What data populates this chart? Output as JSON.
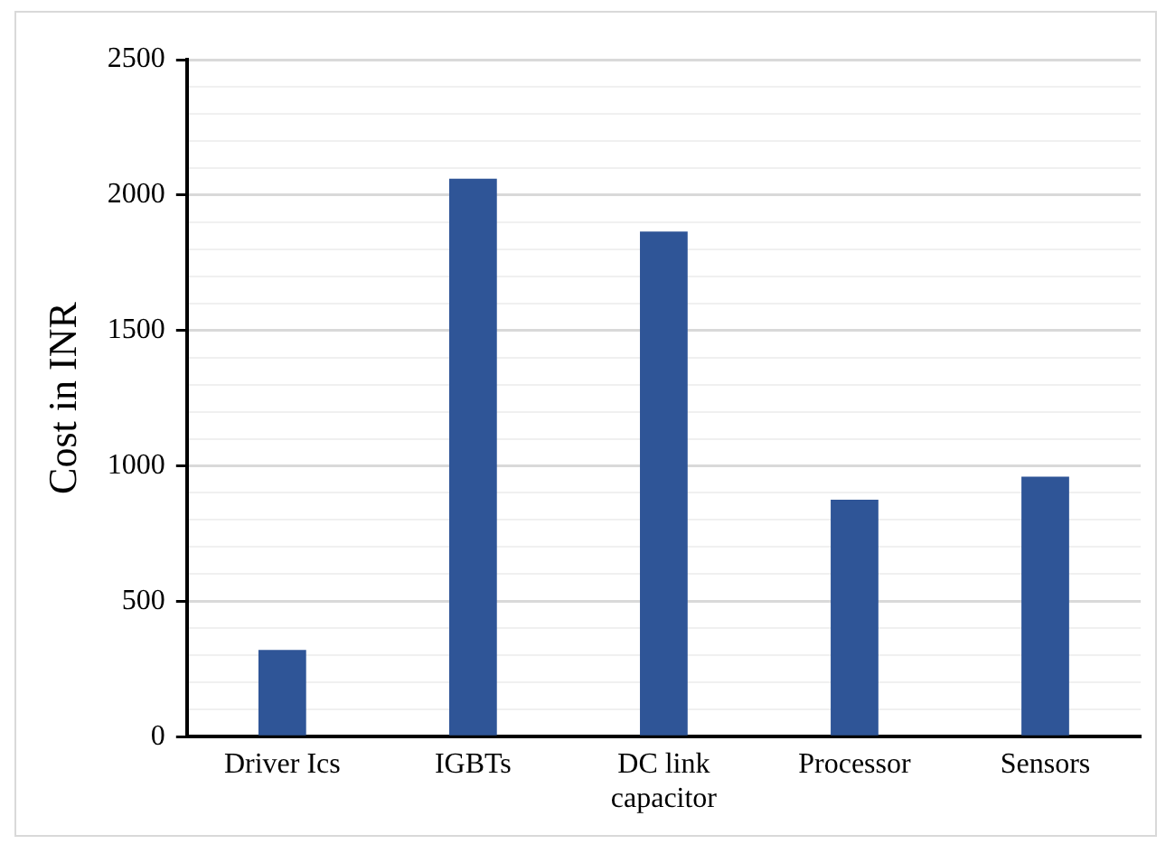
{
  "chart_data": {
    "type": "bar",
    "ylabel": "Cost in INR",
    "categories": [
      "Driver Ics",
      "IGBTs",
      "DC link capacitor",
      "Processor",
      "Sensors"
    ],
    "values": [
      320,
      2060,
      1865,
      875,
      960
    ],
    "color": "#2f5597",
    "ylim": [
      0,
      2500
    ],
    "yticks": [
      0,
      {
        "value": 100,
        "label": null
      },
      {
        "value": 200,
        "label": null
      },
      {
        "value": 300,
        "label": null
      },
      {
        "value": 400,
        "label": null
      },
      500,
      {
        "value": 600,
        "label": null
      },
      {
        "value": 700,
        "label": null
      },
      {
        "value": 800,
        "label": null
      },
      {
        "value": 900,
        "label": null
      },
      1000,
      {
        "value": 1100,
        "label": null
      },
      {
        "value": 1200,
        "label": null
      },
      {
        "value": 1300,
        "label": null
      },
      {
        "value": 1400,
        "label": null
      },
      1500,
      {
        "value": 1600,
        "label": null
      },
      {
        "value": 1700,
        "label": null
      },
      {
        "value": 1800,
        "label": null
      },
      {
        "value": 1900,
        "label": null
      },
      2000,
      {
        "value": 2100,
        "label": null
      },
      {
        "value": 2200,
        "label": null
      },
      {
        "value": 2300,
        "label": null
      },
      {
        "value": 2400,
        "label": null
      },
      2500
    ],
    "grid": "y"
  }
}
